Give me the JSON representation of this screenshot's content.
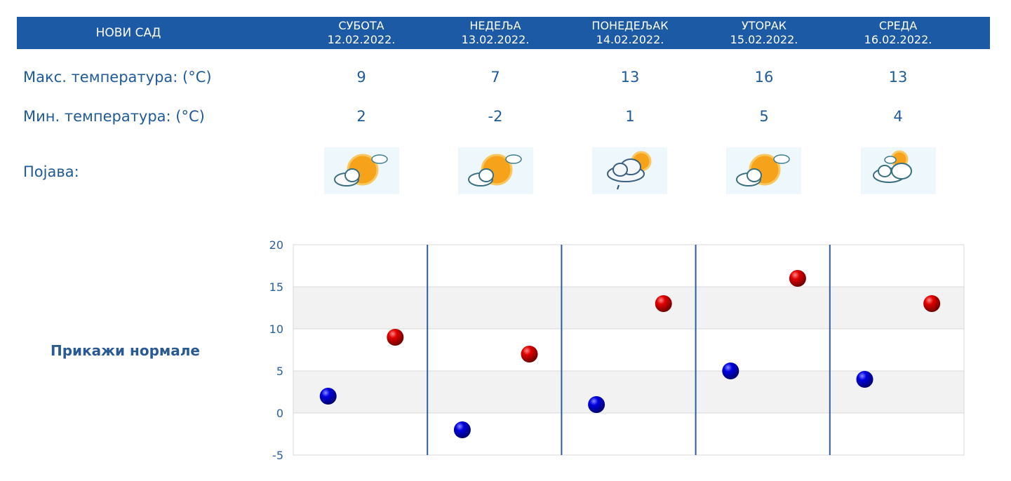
{
  "header": {
    "city": "НОВИ САД",
    "days": [
      {
        "name": "СУБОТА",
        "date": "12.02.2022."
      },
      {
        "name": "НЕДЕЉА",
        "date": "13.02.2022."
      },
      {
        "name": "ПОНЕДЕЉАК",
        "date": "14.02.2022."
      },
      {
        "name": "УТОРАК",
        "date": "15.02.2022."
      },
      {
        "name": "СРЕДА",
        "date": "16.02.2022."
      }
    ]
  },
  "rows": {
    "max_label": "Макс. температура: (°C)",
    "min_label": "Мин. температура: (°C)",
    "phenomenon_label": "Појава:"
  },
  "max_values": [
    "9",
    "7",
    "13",
    "16",
    "13"
  ],
  "min_values": [
    "2",
    "-2",
    "1",
    "5",
    "4"
  ],
  "icons": [
    "sun-cloud-icon",
    "sun-cloud-icon",
    "cloud-rain-icon",
    "sun-cloud-icon",
    "cloud-sun-icon"
  ],
  "normals_link": "Прикажи нормале",
  "colors": {
    "header_bg": "#1c5aa6",
    "text": "#1f5a99",
    "max_marker": "#cc0000",
    "min_marker": "#0000cc"
  },
  "chart_data": {
    "type": "scatter",
    "categories": [
      "12.02.2022.",
      "13.02.2022.",
      "14.02.2022.",
      "15.02.2022.",
      "16.02.2022."
    ],
    "series": [
      {
        "values": [
          2,
          -2,
          1,
          5,
          4
        ],
        "color": "#0000cc"
      },
      {
        "values": [
          9,
          7,
          13,
          16,
          13
        ],
        "color": "#cc0000"
      }
    ],
    "ylim": [
      -5,
      20
    ],
    "yticks": [
      20,
      15,
      10,
      5,
      0,
      -5
    ],
    "grid": true
  }
}
